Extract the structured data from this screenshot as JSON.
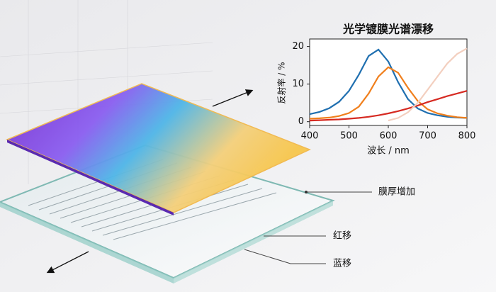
{
  "chart_data": {
    "type": "line",
    "title": "光学镀膜光谱漂移",
    "x_label": "波长 / nm",
    "y_label": "反射率 / %",
    "x": [
      400,
      425,
      450,
      475,
      500,
      525,
      550,
      575,
      600,
      625,
      650,
      675,
      700,
      725,
      750,
      775,
      800
    ],
    "series": [
      {
        "color": "#1f6fb0",
        "values": [
          2.0,
          2.6,
          3.6,
          5.3,
          8.2,
          12.5,
          17.5,
          19.2,
          16.0,
          10.5,
          6.0,
          3.5,
          2.3,
          1.7,
          1.3,
          1.1,
          1.0
        ]
      },
      {
        "color": "#f07f1c",
        "values": [
          0.8,
          0.9,
          1.1,
          1.5,
          2.3,
          4.0,
          7.5,
          12.0,
          14.5,
          13.0,
          9.0,
          5.5,
          3.3,
          2.2,
          1.6,
          1.2,
          1.0
        ]
      },
      {
        "color": "#d62a22",
        "values": [
          0.3,
          0.4,
          0.5,
          0.6,
          0.8,
          1.0,
          1.3,
          1.7,
          2.2,
          2.8,
          3.5,
          4.3,
          5.2,
          6.0,
          6.8,
          7.5,
          8.2
        ]
      },
      {
        "color": "#f3cfbf",
        "values": [
          null,
          null,
          null,
          null,
          null,
          null,
          null,
          null,
          0.3,
          1.0,
          2.5,
          5.0,
          8.5,
          12.0,
          15.5,
          18.0,
          19.5
        ]
      }
    ],
    "xlim": [
      400,
      800
    ],
    "xticks": [
      400,
      500,
      600,
      700,
      800
    ],
    "ylim": [
      -1,
      22
    ],
    "yticks": [
      0,
      10,
      20
    ],
    "annotations": [
      "膜厚增加",
      "红移",
      "蓝移"
    ]
  }
}
